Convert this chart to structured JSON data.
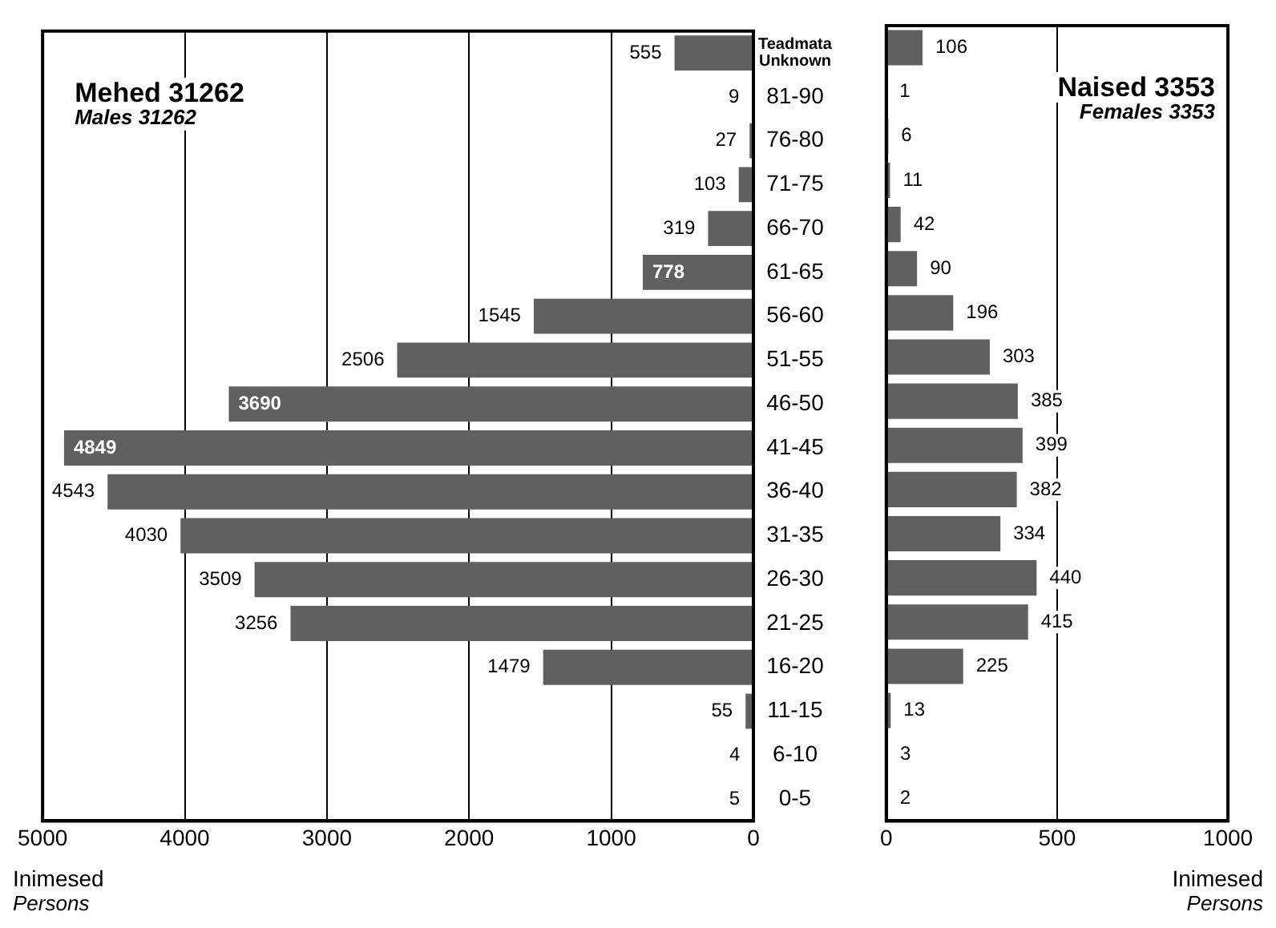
{
  "chart_data": [
    {
      "type": "bar",
      "orientation": "horizontal",
      "title": "Mehed 31262",
      "subtitle": "Males 31262",
      "xlabel": "Inimesed",
      "annotations": [
        "Persons"
      ],
      "categories": [
        "Teadmata Unknown",
        "81-90",
        "76-80",
        "71-75",
        "66-70",
        "61-65",
        "56-60",
        "51-55",
        "46-50",
        "41-45",
        "36-40",
        "31-35",
        "26-30",
        "21-25",
        "16-20",
        "11-15",
        "6-10",
        "0-5"
      ],
      "values": [
        555,
        9,
        27,
        103,
        319,
        778,
        1545,
        2506,
        3690,
        4849,
        4543,
        4030,
        3509,
        3256,
        1479,
        55,
        4,
        5
      ],
      "color": "#606060",
      "xlim": [
        5000,
        0
      ],
      "xticks": [
        5000,
        4000,
        3000,
        2000,
        1000,
        0
      ],
      "grid": "x",
      "legend": false,
      "data_labels": true
    },
    {
      "type": "bar",
      "orientation": "horizontal",
      "title": "Naised 3353",
      "subtitle": "Females 3353",
      "xlabel": "Inimesed",
      "annotations": [
        "Persons"
      ],
      "categories": [
        null,
        null,
        null,
        null,
        null,
        null,
        null,
        null,
        null,
        null,
        null,
        null,
        null,
        null,
        null,
        null,
        null,
        null
      ],
      "values": [
        106,
        1,
        6,
        11,
        42,
        90,
        196,
        303,
        385,
        399,
        382,
        334,
        440,
        415,
        225,
        13,
        3,
        2
      ],
      "color": "#606060",
      "xlim": [
        0,
        1000
      ],
      "xticks": [
        0,
        500,
        1000
      ],
      "grid": "x",
      "legend": false,
      "data_labels": true,
      "tick_labels": "x"
    }
  ]
}
